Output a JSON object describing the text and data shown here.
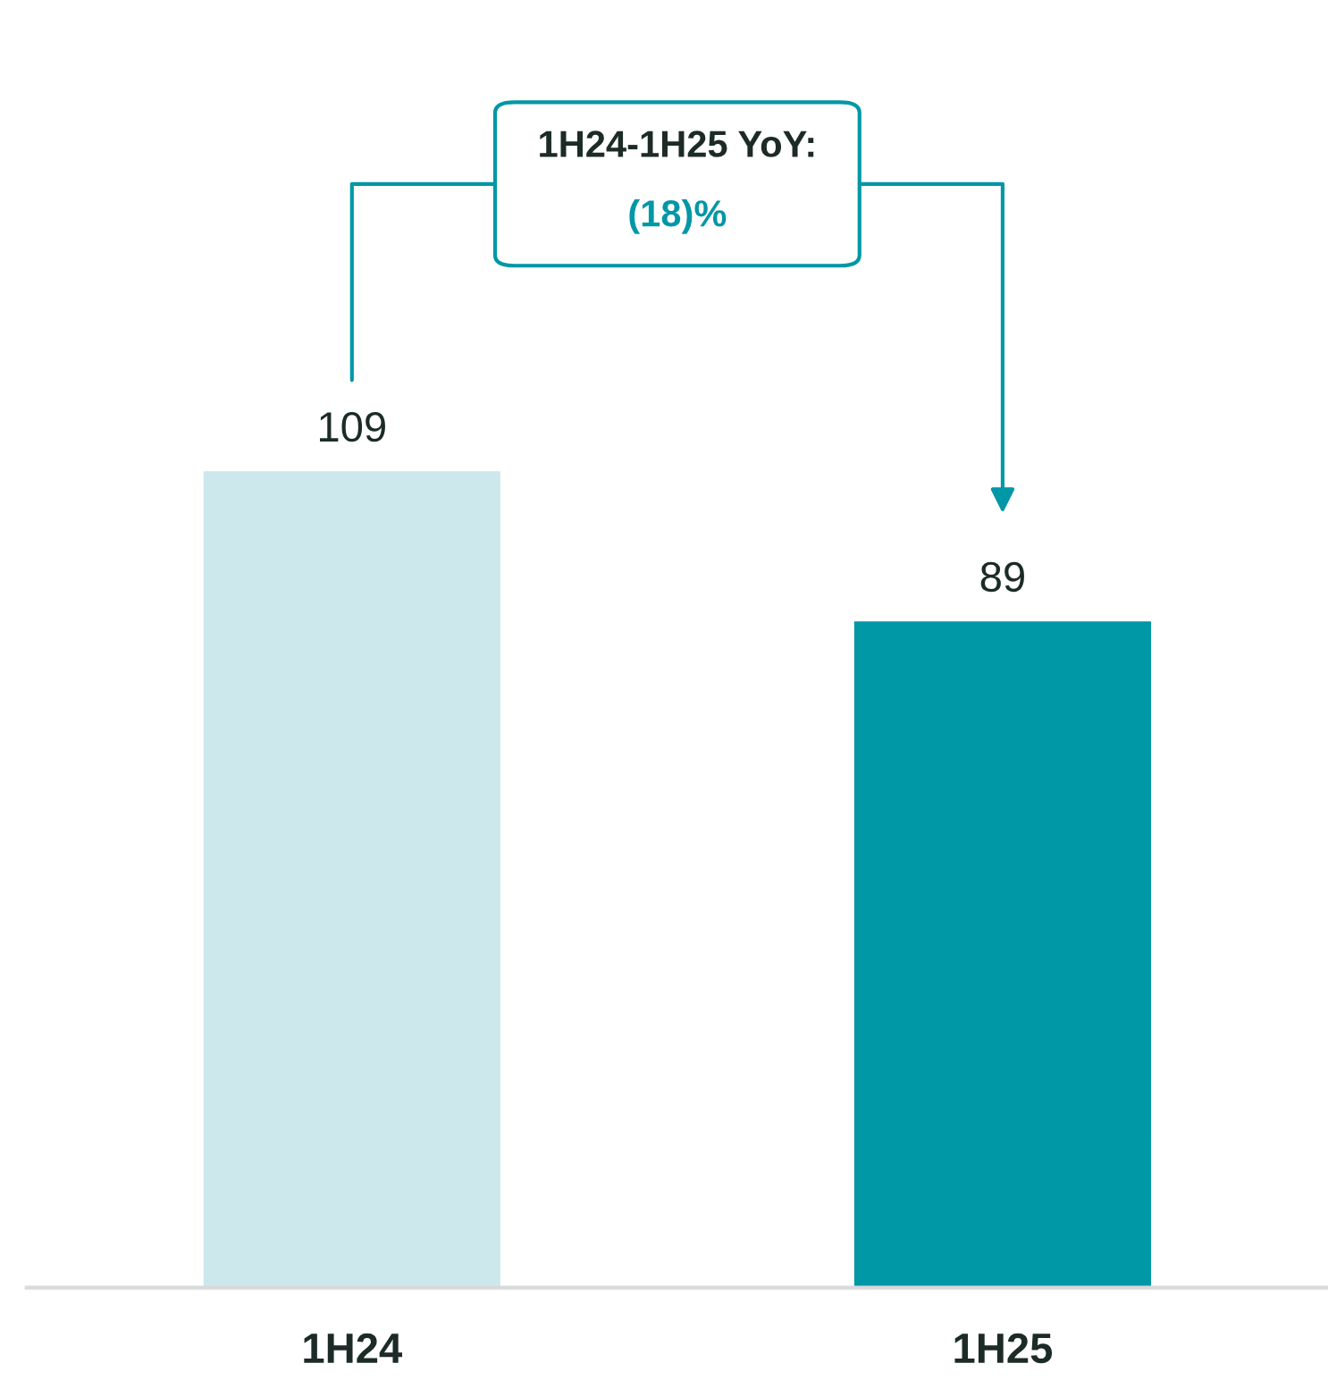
{
  "chart_data": {
    "type": "bar",
    "categories": [
      "1H24",
      "1H25"
    ],
    "values": [
      109,
      89
    ],
    "colors": [
      "#cde8ec",
      "#0097a7"
    ],
    "data_labels": true,
    "annotations": [
      "1H24-1H25 YoY:",
      "(18)%"
    ]
  }
}
